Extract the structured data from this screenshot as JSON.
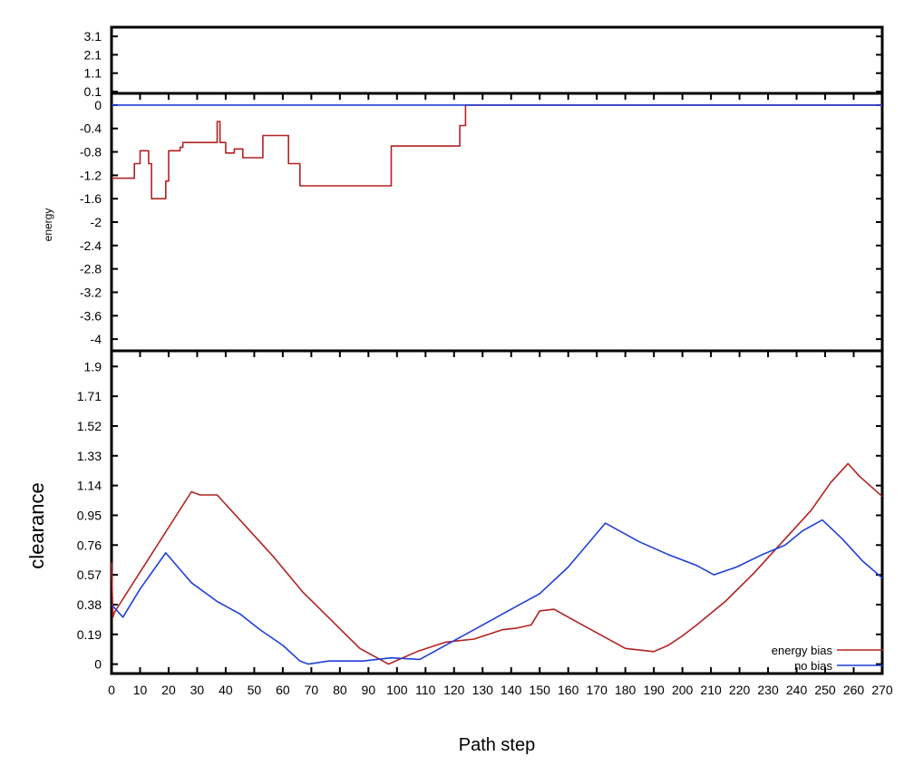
{
  "chart_data": [
    {
      "type": "line",
      "panel": "top-strip",
      "title": "",
      "xlabel": "",
      "ylabel": "",
      "yticks": [
        0.1,
        1.1,
        2.1,
        3.1
      ],
      "ylim": [
        0.0,
        3.6
      ],
      "xlim": [
        0,
        270
      ],
      "series": []
    },
    {
      "type": "line",
      "panel": "energy",
      "title": "",
      "xlabel": "",
      "ylabel": "energy",
      "yticks": [
        0,
        -0.4,
        -0.8,
        -1.2,
        -1.6,
        -2,
        -2.4,
        -2.8,
        -3.2,
        -3.6,
        -4
      ],
      "ylim": [
        -4.2,
        0.2
      ],
      "xlim": [
        0,
        270
      ],
      "series": [
        {
          "color": "#b22222",
          "x": [
            0,
            8,
            8,
            10,
            10,
            13,
            13,
            14,
            14,
            19,
            19,
            20,
            20,
            24,
            24,
            25,
            25,
            37,
            37,
            38,
            38,
            40,
            40,
            43,
            43,
            46,
            46,
            53,
            53,
            62,
            62,
            66,
            66,
            98,
            98,
            122,
            122,
            124,
            124,
            270
          ],
          "y": [
            -1.25,
            -1.25,
            -1.0,
            -1.0,
            -0.78,
            -0.78,
            -1.0,
            -1.0,
            -1.6,
            -1.6,
            -1.3,
            -1.3,
            -0.78,
            -0.78,
            -0.72,
            -0.72,
            -0.64,
            -0.64,
            -0.28,
            -0.28,
            -0.64,
            -0.64,
            -0.82,
            -0.82,
            -0.75,
            -0.75,
            -0.9,
            -0.9,
            -0.52,
            -0.52,
            -1.0,
            -1.0,
            -1.38,
            -1.38,
            -0.7,
            -0.7,
            -0.35,
            -0.35,
            0,
            0
          ]
        },
        {
          "color": "#1f3fd8",
          "x": [
            0,
            270
          ],
          "y": [
            0,
            0
          ]
        }
      ]
    },
    {
      "type": "line",
      "panel": "clearance",
      "title": "",
      "xlabel": "Path step",
      "ylabel": "clearance",
      "yticks": [
        0,
        0.19,
        0.38,
        0.57,
        0.76,
        0.95,
        1.14,
        1.33,
        1.52,
        1.71,
        1.9
      ],
      "ylim": [
        -0.06,
        2.0
      ],
      "xlim": [
        0,
        270
      ],
      "xticks": [
        "0",
        "10",
        "20",
        "30",
        "40",
        "50",
        "60",
        "70",
        "80",
        "90",
        "100",
        "110",
        "120",
        "130",
        "140",
        "150",
        "160",
        "170",
        "180",
        "190",
        "200",
        "210",
        "220",
        "230",
        "240",
        "250",
        "260",
        "270"
      ],
      "legend_position": "bottom-right",
      "series": [
        {
          "name": "energy bias",
          "color": "#b22222",
          "x": [
            0,
            0.5,
            1,
            28,
            31,
            37,
            47,
            57,
            67,
            77,
            87,
            97,
            107,
            117,
            127,
            137,
            142,
            147,
            150,
            155,
            160,
            170,
            180,
            190,
            195,
            200,
            205,
            215,
            225,
            235,
            245,
            252,
            258,
            262,
            270
          ],
          "y": [
            0.65,
            0.3,
            0.33,
            1.1,
            1.08,
            1.08,
            0.88,
            0.68,
            0.46,
            0.28,
            0.1,
            0.0,
            0.08,
            0.14,
            0.16,
            0.22,
            0.23,
            0.25,
            0.34,
            0.35,
            0.3,
            0.2,
            0.1,
            0.08,
            0.12,
            0.18,
            0.25,
            0.4,
            0.58,
            0.78,
            0.98,
            1.16,
            1.28,
            1.2,
            1.07
          ]
        },
        {
          "name": "no bias",
          "color": "#1f3fd8",
          "x": [
            0,
            4,
            10,
            19,
            28,
            37,
            45,
            52,
            60,
            66,
            69,
            76,
            88,
            98,
            108,
            120,
            130,
            140,
            150,
            160,
            173,
            185,
            195,
            205,
            211,
            219,
            228,
            236,
            242,
            249,
            256,
            263,
            270
          ],
          "y": [
            0.38,
            0.3,
            0.48,
            0.71,
            0.52,
            0.4,
            0.32,
            0.22,
            0.12,
            0.02,
            0.0,
            0.02,
            0.02,
            0.04,
            0.03,
            0.15,
            0.25,
            0.35,
            0.45,
            0.62,
            0.9,
            0.78,
            0.7,
            0.63,
            0.57,
            0.62,
            0.7,
            0.76,
            0.85,
            0.92,
            0.8,
            0.66,
            0.55
          ]
        }
      ]
    }
  ]
}
